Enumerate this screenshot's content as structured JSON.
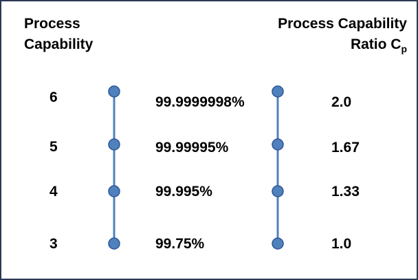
{
  "header_left": {
    "line1": "Process",
    "line2": "Capability"
  },
  "header_right": {
    "line1": "Process Capability",
    "line2": "Ratio C",
    "subscript": "p"
  },
  "rows": [
    {
      "sigma": "6",
      "yield": "99.9999998%",
      "cp": "2.0"
    },
    {
      "sigma": "5",
      "yield": "99.99995%",
      "cp": "1.67"
    },
    {
      "sigma": "4",
      "yield": "99.995%",
      "cp": "1.33"
    },
    {
      "sigma": "3",
      "yield": "99.75%",
      "cp": "1.0"
    }
  ],
  "colors": {
    "node_fill": "#4f81bd",
    "node_stroke": "#2f5597",
    "line": "#4f81bd",
    "border": "#2b3a55"
  }
}
